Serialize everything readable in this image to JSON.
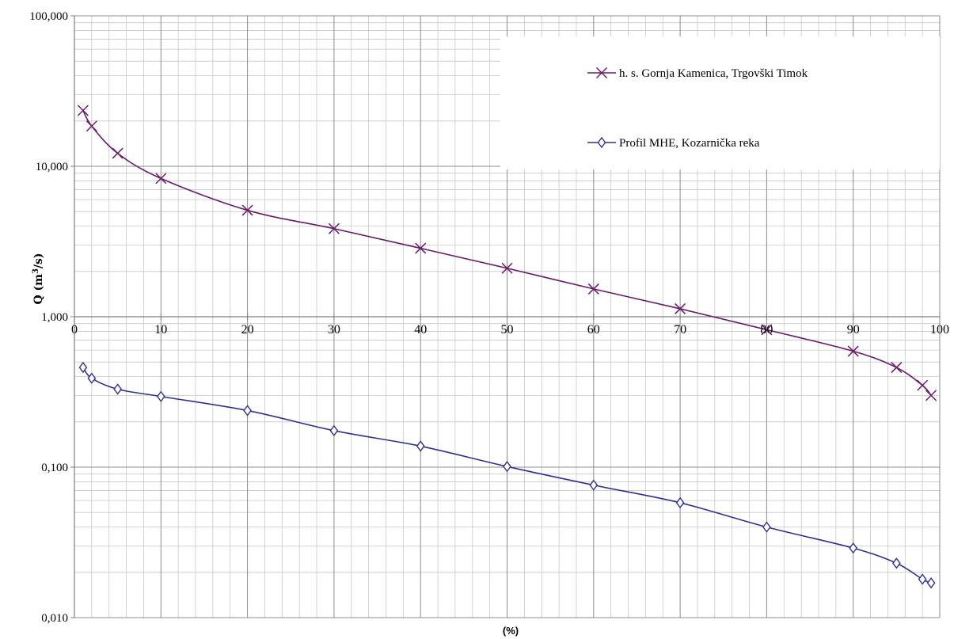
{
  "chart_data": {
    "type": "line",
    "title": "",
    "xlabel": "(%)",
    "ylabel": "Q (m³/s)",
    "ylabel_parts": {
      "prefix": "Q (m",
      "sup": "3",
      "suffix": "/s)"
    },
    "xlim": [
      0,
      100
    ],
    "ylim": [
      0.01,
      100
    ],
    "yscale": "log",
    "grid": true,
    "legend_position": "top-right",
    "x_ticks": [
      "0",
      "10",
      "20",
      "30",
      "40",
      "50",
      "60",
      "70",
      "80",
      "90",
      "100"
    ],
    "x_tick_values": [
      0,
      10,
      20,
      30,
      40,
      50,
      60,
      70,
      80,
      90,
      100
    ],
    "y_ticks": [
      "0,010",
      "0,100",
      "1,000",
      "10,000",
      "100,000"
    ],
    "y_tick_values": [
      0.01,
      0.1,
      1,
      10,
      100
    ],
    "series": [
      {
        "name": "h. s. Gornja Kamenica, Trgovški Timok",
        "color": "#6b1a6b",
        "marker": "x",
        "x": [
          1,
          2,
          5,
          10,
          20,
          30,
          40,
          50,
          60,
          70,
          80,
          90,
          95,
          98,
          99
        ],
        "y": [
          23.5,
          18.5,
          12.2,
          8.3,
          5.1,
          3.85,
          2.85,
          2.1,
          1.53,
          1.13,
          0.82,
          0.59,
          0.46,
          0.35,
          0.3
        ]
      },
      {
        "name": "Profil MHE, Kozarnička reka",
        "color": "#2e3192",
        "marker": "diamond",
        "x": [
          1,
          2,
          5,
          10,
          20,
          30,
          40,
          50,
          60,
          70,
          80,
          90,
          95,
          98,
          99
        ],
        "y": [
          0.46,
          0.39,
          0.33,
          0.295,
          0.238,
          0.175,
          0.138,
          0.101,
          0.076,
          0.058,
          0.04,
          0.029,
          0.023,
          0.018,
          0.017
        ]
      }
    ]
  }
}
